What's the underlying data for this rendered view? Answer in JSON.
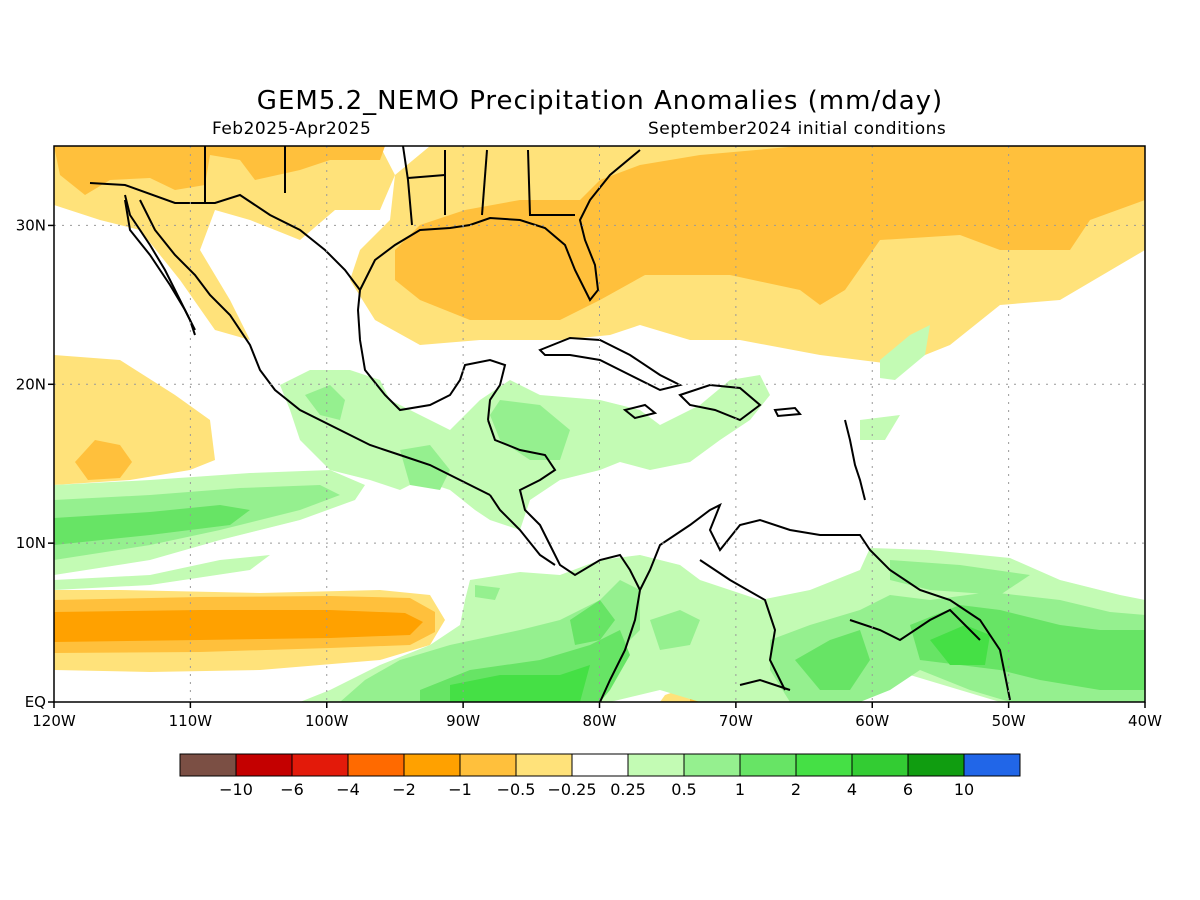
{
  "header": {
    "title": "GEM5.2_NEMO Precipitation Anomalies (mm/day)",
    "period": "Feb2025-Apr2025",
    "initial_conditions": "September2024 initial conditions"
  },
  "map": {
    "lon_range": [
      -120,
      -40
    ],
    "lat_range": [
      0,
      35
    ],
    "x_ticks": [
      {
        "value": -120,
        "label": "120W"
      },
      {
        "value": -110,
        "label": "110W"
      },
      {
        "value": -100,
        "label": "100W"
      },
      {
        "value": -90,
        "label": "90W"
      },
      {
        "value": -80,
        "label": "80W"
      },
      {
        "value": -70,
        "label": "70W"
      },
      {
        "value": -60,
        "label": "60W"
      },
      {
        "value": -50,
        "label": "50W"
      },
      {
        "value": -40,
        "label": "40W"
      }
    ],
    "y_ticks": [
      {
        "value": 0,
        "label": "EQ"
      },
      {
        "value": 10,
        "label": "10N"
      },
      {
        "value": 20,
        "label": "20N"
      },
      {
        "value": 30,
        "label": "30N"
      }
    ],
    "gridlines": "dotted"
  },
  "colorbar": {
    "colors": [
      "#7b4f44",
      "#c40000",
      "#e31a0a",
      "#ff6a00",
      "#ffa100",
      "#ffc03c",
      "#ffe27a",
      "#ffffff",
      "#c3fbb4",
      "#95f08f",
      "#67e465",
      "#45e045",
      "#33cc33",
      "#109d10",
      "#2166e8"
    ],
    "labels": [
      "-10",
      "-6",
      "-4",
      "-2",
      "-1",
      "-0.5",
      "-0.25",
      "0.25",
      "0.5",
      "1",
      "2",
      "4",
      "6",
      "10"
    ]
  },
  "colors": {
    "dry_strong": "#ffa100",
    "dry_medium": "#ffc03c",
    "dry_light": "#ffe27a",
    "wet_light": "#c3fbb4",
    "wet_medium": "#95f08f",
    "wet_strong": "#67e465",
    "wet_stronger": "#45e045"
  }
}
